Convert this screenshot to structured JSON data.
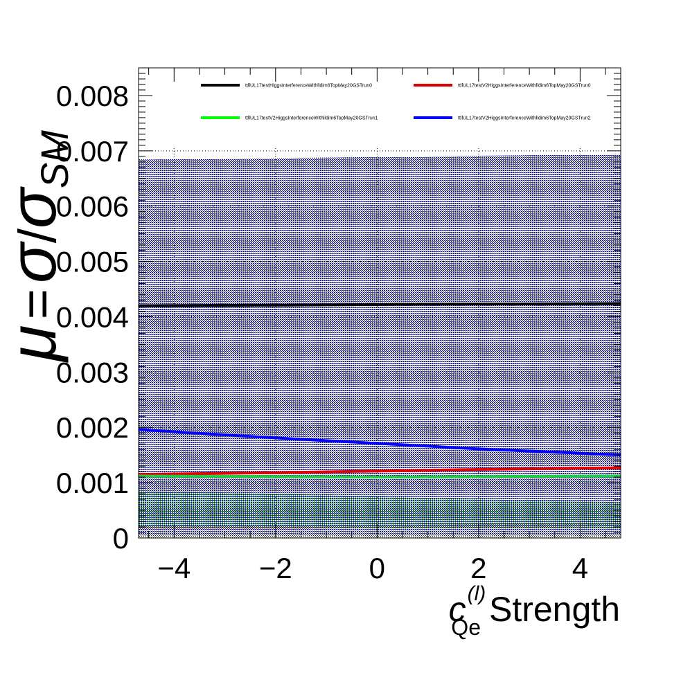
{
  "chart_data": {
    "type": "line",
    "title": "",
    "xlabel": {
      "symbol": "c",
      "superscript": "(l)",
      "subscript": "Qe",
      "text": "Strength"
    },
    "ylabel": {
      "mu": "μ",
      "equals": "=",
      "sigma": "σ",
      "slash": "/",
      "sigma_sm": "σ",
      "sm": "SM"
    },
    "xlim": [
      -4.7,
      4.8
    ],
    "ylim": [
      0,
      0.0085
    ],
    "x_ticks": [
      -4,
      -2,
      0,
      2,
      4
    ],
    "x_tick_labels": [
      "−4",
      "−2",
      "0",
      "2",
      "4"
    ],
    "y_ticks": [
      0,
      0.001,
      0.002,
      0.003,
      0.004,
      0.005,
      0.006,
      0.007,
      0.008
    ],
    "y_tick_labels": [
      "0",
      "0.001",
      "0.002",
      "0.003",
      "0.004",
      "0.005",
      "0.006",
      "0.007",
      "0.008"
    ],
    "grid": true,
    "legend_position": "top",
    "series": [
      {
        "name": "ttllUL17testHiggsInterferenceWithlldim6TopMay20GSTrun0",
        "color": "#000000",
        "x": [
          -4.7,
          -2,
          0,
          2,
          4.8
        ],
        "values": [
          0.0042,
          0.00421,
          0.00422,
          0.00423,
          0.00424
        ],
        "band_lower": [
          0,
          0,
          0,
          0,
          0
        ],
        "band_upper": [
          0.00684,
          0.00686,
          0.00689,
          0.00691,
          0.00694
        ]
      },
      {
        "name": "ttllUL17testV2HiggsInterferenceWithlldim6TopMay20GSTrun0",
        "color": "#e00000",
        "x": [
          -4.7,
          -2,
          0,
          2,
          4.8
        ],
        "values": [
          0.00115,
          0.00118,
          0.00121,
          0.00124,
          0.00127
        ],
        "band_lower": [
          0.00015,
          0.00016,
          0.00018,
          0.00019,
          0.00021
        ],
        "band_upper": [
          0.00022,
          0.00023,
          0.00024,
          0.00025,
          0.00026
        ]
      },
      {
        "name": "ttllUL17testV2HiggsInterferenceWithlldim6TopMay20GSTrun1",
        "color": "#00ff00",
        "x": [
          -4.7,
          -2,
          0,
          2,
          4.8
        ],
        "values": [
          0.00112,
          0.00111,
          0.0011,
          0.00111,
          0.00112
        ],
        "band_lower": [
          0.00018,
          0.00018,
          0.00017,
          0.00017,
          0.00017
        ],
        "band_upper": [
          0.00085,
          0.0008,
          0.00075,
          0.0007,
          0.00065
        ]
      },
      {
        "name": "ttllUL17testV2HiggsInterferenceWithlldim6TopMay20GSTrun2",
        "color": "#0000ff",
        "x": [
          -4.7,
          -2,
          0,
          2,
          4.8
        ],
        "values": [
          0.00196,
          0.00181,
          0.00171,
          0.00161,
          0.0015
        ],
        "band_lower": [
          5e-05,
          5e-05,
          5e-05,
          5e-05,
          5e-05
        ],
        "band_upper": [
          0.00685,
          0.00687,
          0.00689,
          0.00691,
          0.00694
        ]
      }
    ]
  }
}
